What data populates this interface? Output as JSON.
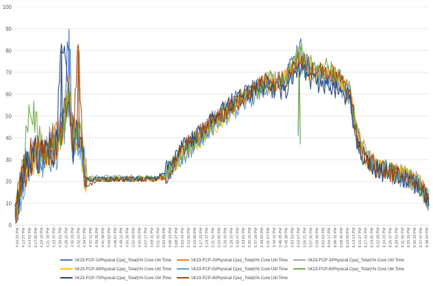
{
  "chart_data": {
    "type": "line",
    "title": "",
    "xlabel": "",
    "ylabel": "",
    "ylim": [
      0,
      100
    ],
    "yticks": [
      0,
      10,
      20,
      30,
      40,
      50,
      60,
      70,
      80,
      90,
      100
    ],
    "grid": "horizontal",
    "legend_position": "bottom",
    "x_tick_labels": [
      "4:10:23 PM",
      "4:12:37 PM",
      "4:14:51 PM",
      "4:17:05 PM",
      "4:19:19 PM",
      "4:21:33 PM",
      "4:23:47 PM",
      "4:26:01 PM",
      "4:28:15 PM",
      "4:30:29 PM",
      "4:32:43 PM",
      "4:34:57 PM",
      "4:37:11 PM",
      "4:39:25 PM",
      "4:41:39 PM",
      "4:43:53 PM",
      "4:46:07 PM",
      "4:48:21 PM",
      "4:50:35 PM",
      "4:52:49 PM",
      "4:55:03 PM",
      "4:57:17 PM",
      "4:59:31 PM",
      "5:01:45 PM",
      "5:03:59 PM",
      "5:06:13 PM",
      "5:08:27 PM",
      "5:10:41 PM",
      "5:12:55 PM",
      "5:15:09 PM",
      "5:17:23 PM",
      "5:19:37 PM",
      "5:21:51 PM",
      "5:24:05 PM",
      "5:26:19 PM",
      "5:28:33 PM",
      "5:30:47 PM",
      "5:33:01 PM",
      "5:35:15 PM",
      "5:37:29 PM",
      "5:39:43 PM",
      "5:41:57 PM",
      "5:44:11 PM",
      "5:46:25 PM",
      "5:48:39 PM",
      "5:50:53 PM",
      "5:53:07 PM",
      "5:55:21 PM",
      "5:57:35 PM",
      "5:59:49 PM",
      "6:02:03 PM",
      "6:04:17 PM",
      "6:06:31 PM",
      "6:08:45 PM",
      "6:10:59 PM",
      "6:13:13 PM",
      "6:15:27 PM",
      "6:17:41 PM",
      "6:19:55 PM",
      "6:22:09 PM",
      "6:24:23 PM",
      "6:26:37 PM",
      "6:28:51 PM",
      "6:31:05 PM",
      "6:33:19 PM",
      "6:35:33 PM",
      "6:37:47 PM",
      "6:38:24 PM"
    ],
    "x_key_times": [
      "4:10:23 PM",
      "4:13:00 PM",
      "4:16:00 PM",
      "4:20:00 PM",
      "4:23:00 PM",
      "4:25:00 PM",
      "4:27:00 PM",
      "4:29:40 PM",
      "4:31:00 PM",
      "4:33:00 PM",
      "4:34:30 PM",
      "4:35:00 PM",
      "4:36:00 PM",
      "4:40:00 PM",
      "4:50:00 PM",
      "5:00:00 PM",
      "5:04:00 PM",
      "5:10:00 PM",
      "5:20:00 PM",
      "5:30:00 PM",
      "5:40:00 PM",
      "5:47:00 PM",
      "5:52:00 PM",
      "5:56:00 PM",
      "6:02:00 PM",
      "6:06:00 PM",
      "6:10:00 PM",
      "6:13:00 PM",
      "6:16:00 PM",
      "6:20:00 PM",
      "6:25:00 PM",
      "6:30:00 PM",
      "6:35:00 PM",
      "6:38:24 PM"
    ],
    "series": [
      {
        "name": "\\\\K23-FCP-1\\Physical Cpu(_Total)\\% Core Util Time",
        "color": "#4472C4",
        "values": [
          2,
          22,
          30,
          34,
          35,
          36,
          40,
          90,
          36,
          40,
          30,
          28,
          22,
          21,
          22,
          21,
          22,
          32,
          45,
          58,
          66,
          66,
          83,
          72,
          68,
          66,
          60,
          38,
          30,
          26,
          24,
          22,
          18,
          10
        ]
      },
      {
        "name": "\\\\K23-FCP-2\\Physical Cpu(_Total)\\% Core Util Time",
        "color": "#ED7D31",
        "values": [
          2,
          24,
          31,
          36,
          35,
          38,
          42,
          62,
          38,
          44,
          31,
          27,
          21,
          21,
          21,
          21,
          22,
          33,
          46,
          57,
          65,
          67,
          76,
          72,
          70,
          68,
          61,
          40,
          31,
          27,
          24,
          23,
          19,
          12
        ]
      },
      {
        "name": "\\\\K23-FCP-3\\Physical Cpu(_Total)\\% Core Util Time",
        "color": "#A5A5A5",
        "values": [
          2,
          25,
          33,
          34,
          39,
          37,
          46,
          60,
          40,
          45,
          31,
          27,
          21,
          22,
          22,
          21,
          22,
          34,
          46,
          58,
          66,
          66,
          78,
          72,
          70,
          66,
          62,
          42,
          32,
          27,
          25,
          23,
          20,
          12
        ]
      },
      {
        "name": "\\\\K23-FCP-4\\Physical Cpu(_Total)\\% Core Util Time",
        "color": "#FFC000",
        "values": [
          2,
          20,
          29,
          31,
          33,
          34,
          41,
          64,
          36,
          40,
          29,
          27,
          21,
          21,
          21,
          21,
          22,
          32,
          44,
          55,
          64,
          66,
          75,
          70,
          68,
          66,
          59,
          38,
          30,
          26,
          24,
          22,
          19,
          11
        ]
      },
      {
        "name": "\\\\K23-FCP-5\\Physical Cpu(_Total)\\% Core Util Time",
        "color": "#5B9BD5",
        "values": [
          2,
          18,
          27,
          30,
          32,
          33,
          38,
          58,
          34,
          39,
          28,
          26,
          21,
          21,
          21,
          21,
          23,
          31,
          43,
          54,
          63,
          65,
          74,
          70,
          67,
          65,
          58,
          37,
          29,
          25,
          23,
          21,
          18,
          10
        ]
      },
      {
        "name": "\\\\K23-FCP-6\\Physical Cpu(_Total)\\% Core Util Time",
        "color": "#70AD47",
        "values": [
          2,
          26,
          53,
          35,
          38,
          36,
          44,
          60,
          39,
          44,
          30,
          27,
          21,
          21,
          21,
          22,
          22,
          33,
          45,
          57,
          66,
          68,
          80,
          74,
          72,
          68,
          62,
          41,
          31,
          27,
          25,
          23,
          19,
          11
        ]
      },
      {
        "name": "\\\\K23-FCP-7\\Physical Cpu(_Total)\\% Core Util Time",
        "color": "#264478",
        "values": [
          2,
          21,
          30,
          33,
          36,
          35,
          80,
          62,
          37,
          42,
          29,
          27,
          21,
          21,
          21,
          21,
          24,
          35,
          48,
          58,
          64,
          60,
          72,
          66,
          64,
          62,
          58,
          36,
          28,
          25,
          23,
          21,
          18,
          10
        ]
      },
      {
        "name": "\\\\K23-FCP-8\\Physical Cpu(_Total)\\% Core Util Time",
        "color": "#9E480E",
        "values": [
          2,
          23,
          31,
          35,
          36,
          37,
          42,
          62,
          38,
          80,
          30,
          26,
          18,
          21,
          21,
          21,
          22,
          34,
          46,
          57,
          65,
          66,
          76,
          72,
          70,
          67,
          60,
          39,
          30,
          26,
          24,
          22,
          19,
          11
        ]
      }
    ]
  }
}
